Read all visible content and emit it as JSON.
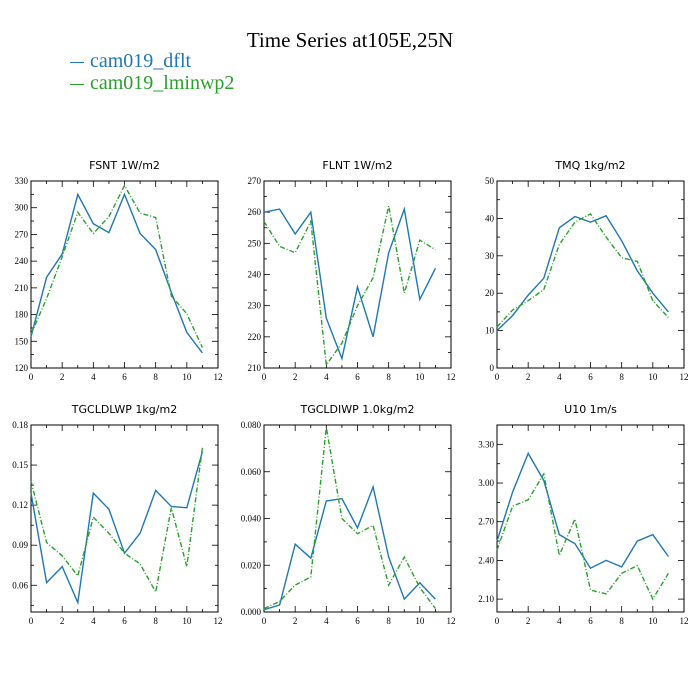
{
  "title": "Time Series at105E,25N",
  "legend": [
    {
      "label": "cam019_dflt",
      "color": "#1f77b4"
    },
    {
      "label": "cam019_lminwp2",
      "color": "#2ca02c"
    }
  ],
  "chart_data": [
    {
      "type": "line",
      "title": "FSNT   1W/m2",
      "x": [
        0,
        1,
        2,
        3,
        4,
        5,
        6,
        7,
        8,
        9,
        10,
        11
      ],
      "xlim": [
        0,
        12
      ],
      "xticks": [
        0,
        2,
        4,
        6,
        8,
        10,
        12
      ],
      "xtick_labels": [
        "0",
        "2",
        "4",
        "6",
        "8",
        "10",
        "12"
      ],
      "ylim": [
        120,
        330
      ],
      "yticks": [
        120,
        150,
        180,
        210,
        240,
        270,
        300,
        330
      ],
      "ytick_labels": [
        "120",
        "150",
        "180",
        "210",
        "240",
        "270",
        "300",
        "330"
      ],
      "series": [
        {
          "name": "cam019_dflt",
          "values": [
            155,
            222,
            248,
            315,
            282,
            272,
            315,
            271,
            253,
            205,
            160,
            137
          ]
        },
        {
          "name": "cam019_lminwp2",
          "values": [
            158,
            198,
            245,
            295,
            271,
            290,
            325,
            294,
            289,
            201,
            181,
            143
          ]
        }
      ]
    },
    {
      "type": "line",
      "title": "FLNT   1W/m2",
      "x": [
        0,
        1,
        2,
        3,
        4,
        5,
        6,
        7,
        8,
        9,
        10,
        11
      ],
      "xlim": [
        0,
        12
      ],
      "xticks": [
        0,
        2,
        4,
        6,
        8,
        10,
        12
      ],
      "xtick_labels": [
        "0",
        "2",
        "4",
        "6",
        "8",
        "10",
        "12"
      ],
      "ylim": [
        210,
        270
      ],
      "yticks": [
        210,
        220,
        230,
        240,
        250,
        260,
        270
      ],
      "ytick_labels": [
        "210",
        "220",
        "230",
        "240",
        "250",
        "260",
        "270"
      ],
      "series": [
        {
          "name": "cam019_dflt",
          "values": [
            260,
            261,
            253,
            260,
            226,
            213,
            236,
            220,
            247,
            261,
            232,
            242
          ]
        },
        {
          "name": "cam019_lminwp2",
          "values": [
            257,
            249,
            247,
            257,
            211,
            218,
            230,
            239,
            262,
            234,
            251,
            248
          ]
        }
      ]
    },
    {
      "type": "line",
      "title": "TMQ   1kg/m2",
      "x": [
        0,
        1,
        2,
        3,
        4,
        5,
        6,
        7,
        8,
        9,
        10,
        11
      ],
      "xlim": [
        0,
        12
      ],
      "xticks": [
        0,
        2,
        4,
        6,
        8,
        10,
        12
      ],
      "xtick_labels": [
        "0",
        "2",
        "4",
        "6",
        "8",
        "10",
        "12"
      ],
      "ylim": [
        0,
        50
      ],
      "yticks": [
        0,
        10,
        20,
        30,
        40,
        50
      ],
      "ytick_labels": [
        "0",
        "10",
        "20",
        "30",
        "40",
        "50"
      ],
      "series": [
        {
          "name": "cam019_dflt",
          "values": [
            10,
            14,
            19.5,
            24,
            37.5,
            40.5,
            39,
            40.7,
            34,
            26,
            20,
            15
          ]
        },
        {
          "name": "cam019_lminwp2",
          "values": [
            11,
            15.5,
            18,
            21,
            33,
            39,
            41.2,
            35,
            29.5,
            28.5,
            18,
            13.5
          ]
        }
      ]
    },
    {
      "type": "line",
      "title": "TGCLDLWP   1kg/m2",
      "x": [
        0,
        1,
        2,
        3,
        4,
        5,
        6,
        7,
        8,
        9,
        10,
        11
      ],
      "xlim": [
        0,
        12
      ],
      "xticks": [
        0,
        2,
        4,
        6,
        8,
        10,
        12
      ],
      "xtick_labels": [
        "0",
        "2",
        "4",
        "6",
        "8",
        "10",
        "12"
      ],
      "ylim": [
        0.04,
        0.18
      ],
      "yticks": [
        0.06,
        0.09,
        0.12,
        0.15,
        0.18
      ],
      "ytick_labels": [
        "0.06",
        "0.09",
        "0.12",
        "0.15",
        "0.18"
      ],
      "series": [
        {
          "name": "cam019_dflt",
          "values": [
            0.129,
            0.062,
            0.074,
            0.047,
            0.129,
            0.117,
            0.084,
            0.099,
            0.131,
            0.119,
            0.118,
            0.16
          ]
        },
        {
          "name": "cam019_lminwp2",
          "values": [
            0.138,
            0.092,
            0.082,
            0.067,
            0.111,
            0.099,
            0.084,
            0.076,
            0.055,
            0.118,
            0.074,
            0.163
          ]
        }
      ]
    },
    {
      "type": "line",
      "title": "TGCLDIWP   1.0kg/m2",
      "x": [
        0,
        1,
        2,
        3,
        4,
        5,
        6,
        7,
        8,
        9,
        10,
        11
      ],
      "xlim": [
        0,
        12
      ],
      "xticks": [
        0,
        2,
        4,
        6,
        8,
        10,
        12
      ],
      "xtick_labels": [
        "0",
        "2",
        "4",
        "6",
        "8",
        "10",
        "12"
      ],
      "ylim": [
        0,
        0.08
      ],
      "yticks": [
        0,
        0.02,
        0.04,
        0.06,
        0.08
      ],
      "ytick_labels": [
        "0.000",
        "0.020",
        "0.040",
        "0.060",
        "0.080"
      ],
      "series": [
        {
          "name": "cam019_dflt",
          "values": [
            0.001,
            0.003,
            0.029,
            0.023,
            0.0475,
            0.0485,
            0.036,
            0.0535,
            0.0235,
            0.0055,
            0.0125,
            0.0055
          ]
        },
        {
          "name": "cam019_lminwp2",
          "values": [
            0.0015,
            0.0045,
            0.0115,
            0.015,
            0.079,
            0.04,
            0.0335,
            0.037,
            0.0115,
            0.0235,
            0.0105,
            0.0015
          ]
        }
      ]
    },
    {
      "type": "line",
      "title": "U10   1m/s",
      "x": [
        0,
        1,
        2,
        3,
        4,
        5,
        6,
        7,
        8,
        9,
        10,
        11
      ],
      "xlim": [
        0,
        12
      ],
      "xticks": [
        0,
        2,
        4,
        6,
        8,
        10,
        12
      ],
      "xtick_labels": [
        "0",
        "2",
        "4",
        "6",
        "8",
        "10",
        "12"
      ],
      "ylim": [
        2.0,
        3.45
      ],
      "yticks": [
        2.1,
        2.4,
        2.7,
        3.0,
        3.3
      ],
      "ytick_labels": [
        "2.10",
        "2.40",
        "2.70",
        "3.00",
        "3.30"
      ],
      "series": [
        {
          "name": "cam019_dflt",
          "values": [
            2.55,
            2.93,
            3.23,
            3.02,
            2.6,
            2.53,
            2.34,
            2.4,
            2.35,
            2.55,
            2.6,
            2.43
          ]
        },
        {
          "name": "cam019_lminwp2",
          "values": [
            2.48,
            2.82,
            2.87,
            3.07,
            2.44,
            2.72,
            2.17,
            2.14,
            2.3,
            2.36,
            2.1,
            2.3
          ]
        }
      ]
    }
  ]
}
